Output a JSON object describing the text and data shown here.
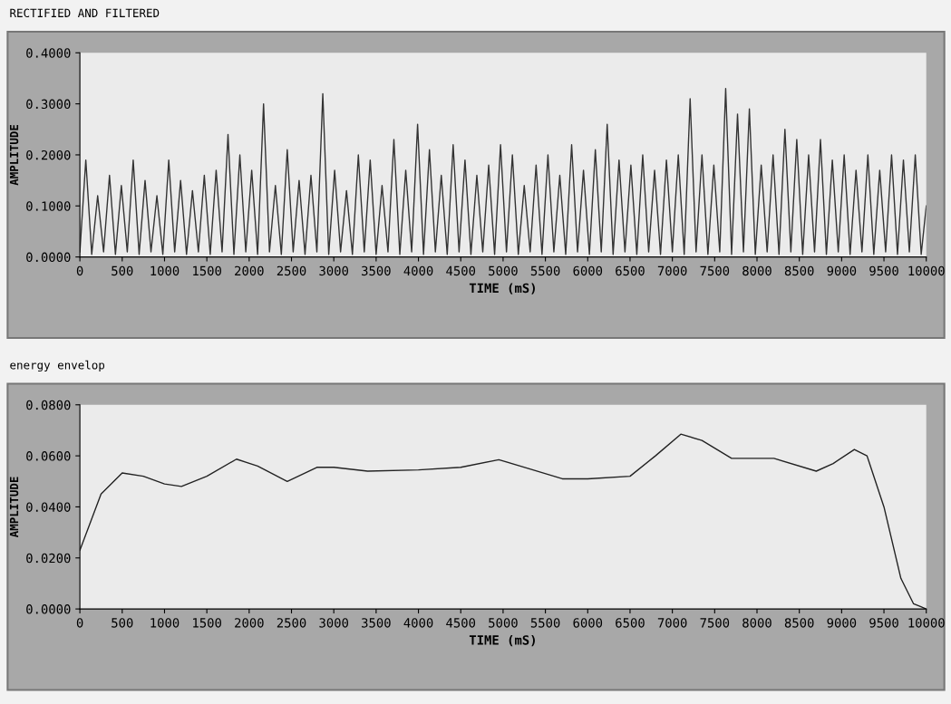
{
  "chart_data": [
    {
      "type": "line",
      "title": "RECTIFIED AND FILTERED",
      "xlabel": "TIME (mS)",
      "ylabel": "AMPLITUDE",
      "xlim": [
        0,
        10000
      ],
      "ylim": [
        0,
        0.4
      ],
      "xticks": [
        0,
        500,
        1000,
        1500,
        2000,
        2500,
        3000,
        3500,
        4000,
        4500,
        5000,
        5500,
        6000,
        6500,
        7000,
        7500,
        8000,
        8500,
        9000,
        9500,
        10000
      ],
      "yticks": [
        {
          "value": 0,
          "label": "0.0000"
        },
        {
          "value": 0.1,
          "label": "0.1000"
        },
        {
          "value": 0.2,
          "label": "0.2000"
        },
        {
          "value": 0.3,
          "label": "0.3000"
        },
        {
          "value": 0.4,
          "label": "0.4000"
        }
      ],
      "grid": false,
      "legend": false,
      "series": [
        {
          "color": "#333333",
          "x": [
            0,
            70,
            140,
            210,
            280,
            350,
            420,
            490,
            560,
            630,
            700,
            770,
            840,
            910,
            980,
            1050,
            1120,
            1190,
            1260,
            1330,
            1400,
            1470,
            1540,
            1610,
            1680,
            1750,
            1820,
            1890,
            1960,
            2030,
            2100,
            2170,
            2240,
            2310,
            2380,
            2450,
            2520,
            2590,
            2660,
            2730,
            2800,
            2870,
            2940,
            3010,
            3080,
            3150,
            3220,
            3290,
            3360,
            3430,
            3500,
            3570,
            3640,
            3710,
            3780,
            3850,
            3920,
            3990,
            4060,
            4130,
            4200,
            4270,
            4340,
            4410,
            4480,
            4550,
            4620,
            4690,
            4760,
            4830,
            4900,
            4970,
            5040,
            5110,
            5180,
            5250,
            5320,
            5390,
            5460,
            5530,
            5600,
            5670,
            5740,
            5810,
            5880,
            5950,
            6020,
            6090,
            6160,
            6230,
            6300,
            6370,
            6440,
            6510,
            6580,
            6650,
            6720,
            6790,
            6860,
            6930,
            7000,
            7070,
            7140,
            7210,
            7280,
            7350,
            7420,
            7490,
            7560,
            7630,
            7700,
            7770,
            7840,
            7910,
            7980,
            8050,
            8120,
            8190,
            8260,
            8330,
            8400,
            8470,
            8540,
            8610,
            8680,
            8750,
            8820,
            8890,
            8960,
            9030,
            9100,
            9170,
            9240,
            9310,
            9380,
            9450,
            9520,
            9590,
            9660,
            9730,
            9800,
            9870,
            9940,
            10000
          ],
          "values": [
            0.01,
            0.19,
            0.005,
            0.12,
            0.01,
            0.16,
            0.005,
            0.14,
            0.01,
            0.19,
            0.005,
            0.15,
            0.01,
            0.12,
            0.005,
            0.19,
            0.01,
            0.15,
            0.005,
            0.13,
            0.01,
            0.16,
            0.005,
            0.17,
            0.01,
            0.24,
            0.005,
            0.2,
            0.01,
            0.17,
            0.005,
            0.3,
            0.01,
            0.14,
            0.005,
            0.21,
            0.01,
            0.15,
            0.005,
            0.16,
            0.01,
            0.32,
            0.005,
            0.17,
            0.01,
            0.13,
            0.005,
            0.2,
            0.01,
            0.19,
            0.005,
            0.14,
            0.01,
            0.23,
            0.005,
            0.17,
            0.01,
            0.26,
            0.005,
            0.21,
            0.01,
            0.16,
            0.005,
            0.22,
            0.01,
            0.19,
            0.005,
            0.16,
            0.01,
            0.18,
            0.005,
            0.22,
            0.01,
            0.2,
            0.005,
            0.14,
            0.01,
            0.18,
            0.005,
            0.2,
            0.01,
            0.16,
            0.005,
            0.22,
            0.01,
            0.17,
            0.005,
            0.21,
            0.01,
            0.26,
            0.005,
            0.19,
            0.01,
            0.18,
            0.005,
            0.2,
            0.01,
            0.17,
            0.005,
            0.19,
            0.01,
            0.2,
            0.005,
            0.31,
            0.01,
            0.2,
            0.005,
            0.18,
            0.01,
            0.33,
            0.005,
            0.28,
            0.01,
            0.29,
            0.005,
            0.18,
            0.01,
            0.2,
            0.005,
            0.25,
            0.01,
            0.23,
            0.005,
            0.2,
            0.01,
            0.23,
            0.005,
            0.19,
            0.01,
            0.2,
            0.005,
            0.17,
            0.01,
            0.2,
            0.005,
            0.17,
            0.01,
            0.2,
            0.005,
            0.19,
            0.01,
            0.2,
            0.005,
            0.1
          ]
        }
      ]
    },
    {
      "type": "line",
      "title": "energy envelop",
      "xlabel": "TIME (mS)",
      "ylabel": "AMPLITUDE",
      "xlim": [
        0,
        10000
      ],
      "ylim": [
        0,
        0.08
      ],
      "xticks": [
        0,
        500,
        1000,
        1500,
        2000,
        2500,
        3000,
        3500,
        4000,
        4500,
        5000,
        5500,
        6000,
        6500,
        7000,
        7500,
        8000,
        8500,
        9000,
        9500,
        10000
      ],
      "yticks": [
        {
          "value": 0,
          "label": "0.0000"
        },
        {
          "value": 0.02,
          "label": "0.0200"
        },
        {
          "value": 0.04,
          "label": "0.0400"
        },
        {
          "value": 0.06,
          "label": "0.0600"
        },
        {
          "value": 0.08,
          "label": "0.0800"
        }
      ],
      "grid": false,
      "legend": false,
      "series": [
        {
          "color": "#222222",
          "x": [
            0,
            250,
            500,
            750,
            1000,
            1200,
            1500,
            1850,
            2100,
            2450,
            2800,
            3000,
            3400,
            4000,
            4500,
            4950,
            5300,
            5700,
            6000,
            6500,
            6800,
            7100,
            7350,
            7700,
            8000,
            8200,
            8700,
            8900,
            9150,
            9300,
            9500,
            9700,
            9850,
            10000
          ],
          "values": [
            0.023,
            0.045,
            0.0533,
            0.052,
            0.049,
            0.048,
            0.052,
            0.0587,
            0.056,
            0.05,
            0.0555,
            0.0555,
            0.054,
            0.0545,
            0.0555,
            0.0585,
            0.055,
            0.051,
            0.051,
            0.052,
            0.06,
            0.0685,
            0.066,
            0.059,
            0.059,
            0.059,
            0.054,
            0.057,
            0.0625,
            0.06,
            0.04,
            0.012,
            0.002,
            0.0
          ]
        }
      ]
    }
  ]
}
